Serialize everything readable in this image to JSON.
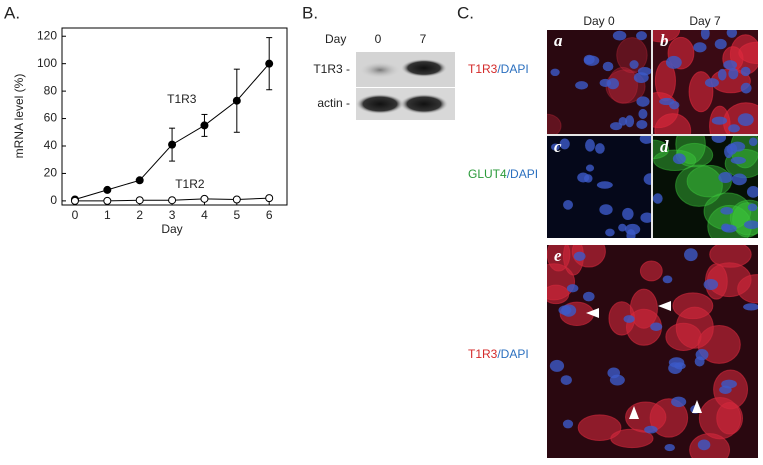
{
  "chart_data": {
    "type": "line",
    "panel_label": "A.",
    "ylabel": "mRNA level (%)",
    "xlabel": "Day",
    "x": [
      0,
      1,
      2,
      3,
      4,
      5,
      6
    ],
    "xlim": [
      -0.4,
      6.55
    ],
    "xticks": [
      0,
      1,
      2,
      3,
      4,
      5,
      6
    ],
    "ylim": [
      -3,
      126
    ],
    "yticks": [
      0,
      20,
      40,
      60,
      80,
      100,
      120
    ],
    "series": [
      {
        "name": "T1R3",
        "color": "#000000",
        "marker_fill": "#000000",
        "values": [
          1,
          8,
          15,
          41,
          55,
          73,
          100
        ],
        "errors": [
          0.5,
          1,
          1.5,
          12,
          8,
          23,
          19
        ]
      },
      {
        "name": "T1R2",
        "color": "#000000",
        "marker_fill": "#ffffff",
        "values": [
          0,
          0,
          0.5,
          0.5,
          1.5,
          1,
          2
        ]
      }
    ]
  },
  "panel_b": {
    "label": "B.",
    "day_label": "Day",
    "days": [
      "0",
      "7"
    ],
    "rows": [
      "T1R3 -",
      "actin -"
    ]
  },
  "panel_c": {
    "label": "C.",
    "columns": [
      "Day 0",
      "Day 7"
    ],
    "row_labels": [
      {
        "stain": "T1R3",
        "counter": "/DAPI"
      },
      {
        "stain": "GLUT4",
        "counter": "/DAPI"
      },
      {
        "stain": "T1R3",
        "counter": "/DAPI"
      }
    ],
    "image_labels": [
      "a",
      "b",
      "c",
      "d",
      "e"
    ]
  }
}
